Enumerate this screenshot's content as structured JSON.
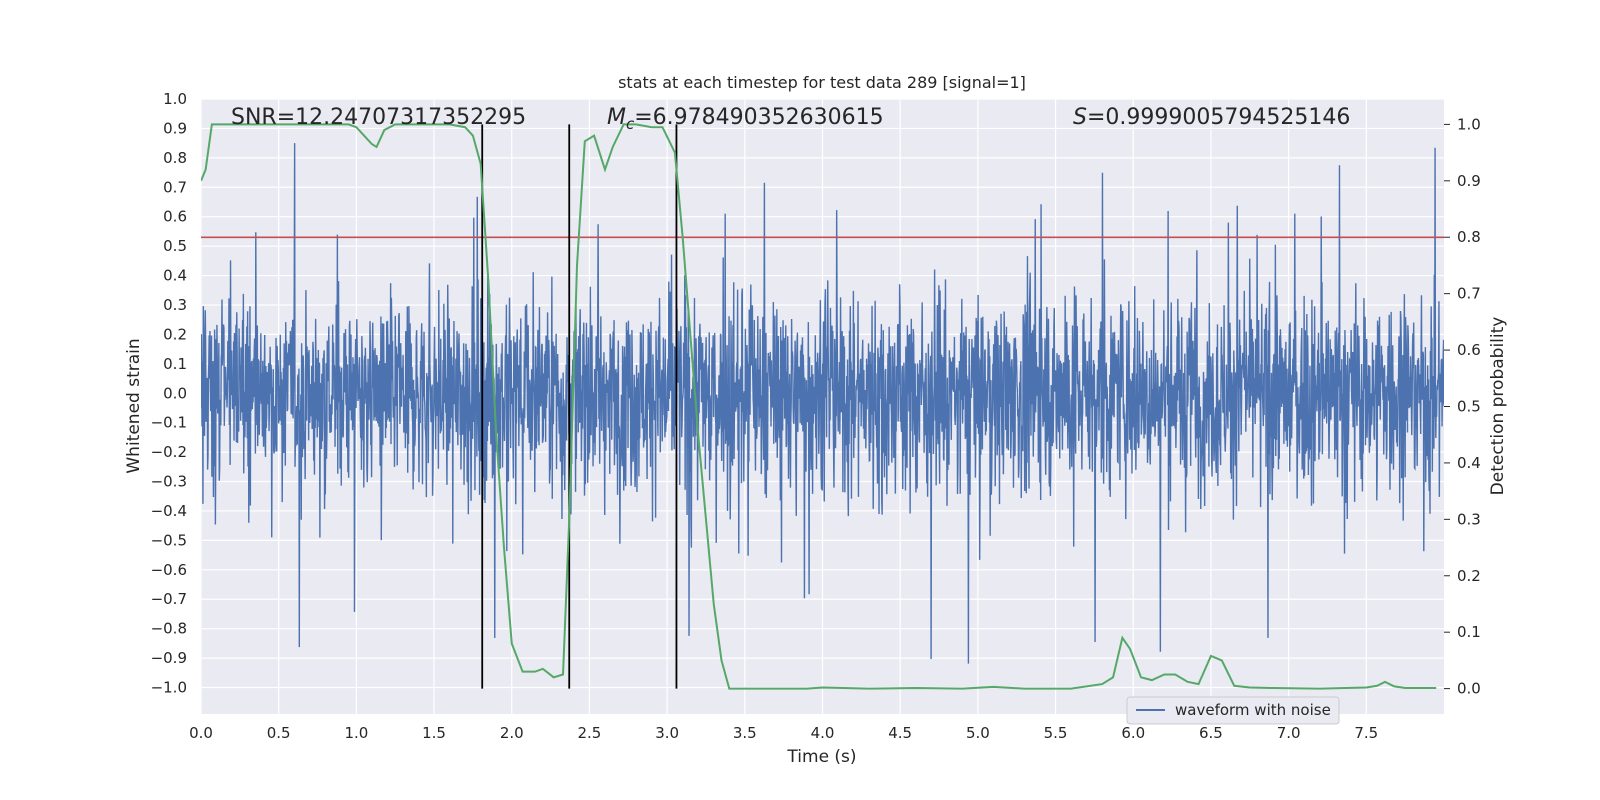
{
  "chart_data": {
    "type": "line",
    "title": "stats at each timestep for test data 289 [signal=1]",
    "xlabel": "Time (s)",
    "ylabel_left": "Whitened strain",
    "ylabel_right": "Detection probability",
    "xlim": [
      0,
      8
    ],
    "ylim_left": [
      -1.09,
      1.0
    ],
    "ylim_right": [
      -0.045,
      1.045
    ],
    "x_ticks": [
      0.0,
      0.5,
      1.0,
      1.5,
      2.0,
      2.5,
      3.0,
      3.5,
      4.0,
      4.5,
      5.0,
      5.5,
      6.0,
      6.5,
      7.0,
      7.5
    ],
    "x_tick_labels": [
      "0.0",
      "0.5",
      "1.0",
      "1.5",
      "2.0",
      "2.5",
      "3.0",
      "3.5",
      "4.0",
      "4.5",
      "5.0",
      "5.5",
      "6.0",
      "6.5",
      "7.0",
      "7.5"
    ],
    "y_left_ticks": [
      -1.0,
      -0.9,
      -0.8,
      -0.7,
      -0.6,
      -0.5,
      -0.4,
      -0.3,
      -0.2,
      -0.1,
      0.0,
      0.1,
      0.2,
      0.3,
      0.4,
      0.5,
      0.6,
      0.7,
      0.8,
      0.9,
      1.0
    ],
    "y_left_tick_labels": [
      "−1.0",
      "−0.9",
      "−0.8",
      "−0.7",
      "−0.6",
      "−0.5",
      "−0.4",
      "−0.3",
      "−0.2",
      "−0.1",
      "0.0",
      "0.1",
      "0.2",
      "0.3",
      "0.4",
      "0.5",
      "0.6",
      "0.7",
      "0.8",
      "0.9",
      "1.0"
    ],
    "y_right_ticks": [
      0.0,
      0.1,
      0.2,
      0.3,
      0.4,
      0.5,
      0.6,
      0.7,
      0.8,
      0.9,
      1.0
    ],
    "y_right_tick_labels": [
      "0.0",
      "0.1",
      "0.2",
      "0.3",
      "0.4",
      "0.5",
      "0.6",
      "0.7",
      "0.8",
      "0.9",
      "1.0"
    ],
    "annotations": {
      "snr": "SNR=12.24707317352295",
      "mc_symbol": "M",
      "mc_sub": "c",
      "mc_value": "=6.978490352630615",
      "s_symbol": "S",
      "s_value": "=0.9999005794525146"
    },
    "series": [
      {
        "name": "waveform with noise",
        "axis": "left",
        "color": "#4c72b0",
        "style": "dense noisy strain, |amplitude| mostly within 0.45, peaks up to about 0.85 and troughs to about -1.0",
        "envelope_typical": 0.45,
        "max_peak": 0.85,
        "min_trough": -1.0
      },
      {
        "name": "detection probability",
        "axis": "right",
        "color": "#55a868",
        "t": [
          0.0,
          0.03,
          0.07,
          0.1,
          0.2,
          0.4,
          0.6,
          0.8,
          0.95,
          1.0,
          1.05,
          1.1,
          1.13,
          1.18,
          1.25,
          1.4,
          1.6,
          1.7,
          1.75,
          1.8,
          1.85,
          1.9,
          1.95,
          2.0,
          2.07,
          2.15,
          2.2,
          2.27,
          2.33,
          2.37,
          2.42,
          2.47,
          2.53,
          2.6,
          2.65,
          2.72,
          2.8,
          2.9,
          2.97,
          3.05,
          3.1,
          3.2,
          3.25,
          3.3,
          3.35,
          3.4,
          3.5,
          3.7,
          3.9,
          4.0,
          4.3,
          4.6,
          4.9,
          5.1,
          5.3,
          5.6,
          5.8,
          5.87,
          5.93,
          5.98,
          6.05,
          6.12,
          6.2,
          6.27,
          6.35,
          6.42,
          6.5,
          6.57,
          6.65,
          6.75,
          6.9,
          7.2,
          7.5,
          7.57,
          7.62,
          7.68,
          7.75,
          7.95
        ],
        "p": [
          0.9,
          0.92,
          1.0,
          1.0,
          1.0,
          1.0,
          1.0,
          1.0,
          1.0,
          0.995,
          0.98,
          0.965,
          0.96,
          0.99,
          1.0,
          1.0,
          1.0,
          0.995,
          0.98,
          0.93,
          0.72,
          0.45,
          0.25,
          0.08,
          0.03,
          0.03,
          0.035,
          0.02,
          0.025,
          0.3,
          0.75,
          0.97,
          0.98,
          0.92,
          0.96,
          1.0,
          1.0,
          0.995,
          0.995,
          0.95,
          0.8,
          0.45,
          0.3,
          0.15,
          0.05,
          0.0,
          0.0,
          0.0,
          0.0,
          0.002,
          0.0,
          0.001,
          0.0,
          0.003,
          0.0,
          0.0,
          0.008,
          0.02,
          0.09,
          0.07,
          0.02,
          0.015,
          0.025,
          0.025,
          0.012,
          0.008,
          0.058,
          0.05,
          0.005,
          0.002,
          0.001,
          0.0,
          0.002,
          0.005,
          0.012,
          0.004,
          0.001,
          0.001
        ]
      }
    ],
    "threshold": {
      "axis": "left",
      "value": 0.53,
      "color": "#c44e52"
    },
    "event_markers": [
      1.81,
      2.37,
      3.06
    ],
    "legend": {
      "label": "waveform with noise",
      "placement": "lower-center-right"
    }
  }
}
